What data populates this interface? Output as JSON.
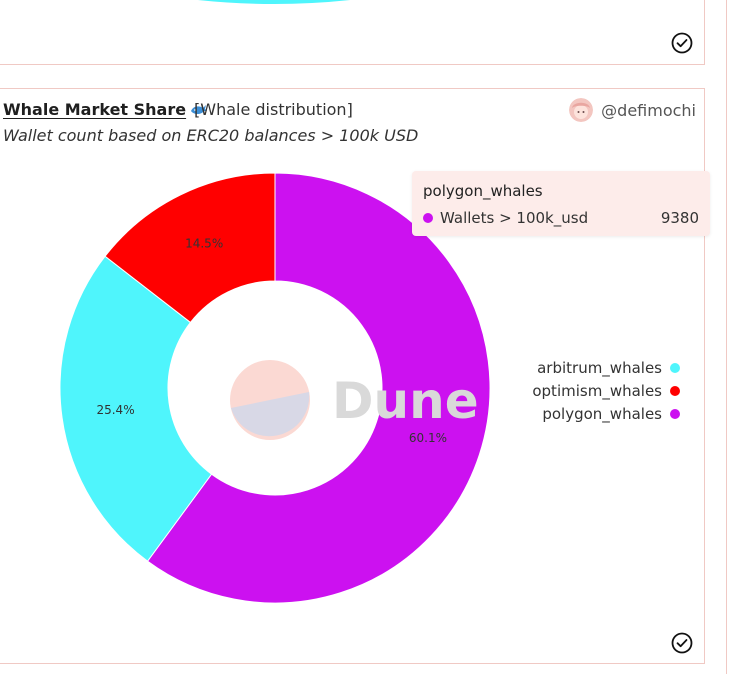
{
  "card": {
    "title": "Whale Market Share",
    "subtitle": "[Whale distribution]",
    "description": "Wallet count based on ERC20 balances > 100k USD",
    "author": "@defimochi"
  },
  "watermark": "Dune",
  "tooltip": {
    "series_name": "polygon_whales",
    "metric_label": "Wallets > 100k_usd",
    "value": "9380",
    "color": "#cc11f0"
  },
  "colors": {
    "arbitrum_whales": "#4ff5fc",
    "optimism_whales": "#ff0000",
    "polygon_whales": "#cc11f0",
    "border": "#f0c9c4"
  },
  "chart_data": {
    "type": "pie",
    "donut": true,
    "title": "Whale Market Share",
    "legend_position": "right",
    "slices": [
      {
        "name": "polygon_whales",
        "percent": 60.1,
        "label": "60.1%",
        "value": 9380
      },
      {
        "name": "arbitrum_whales",
        "percent": 25.4,
        "label": "25.4%"
      },
      {
        "name": "optimism_whales",
        "percent": 14.5,
        "label": "14.5%"
      }
    ],
    "legend": [
      "arbitrum_whales",
      "optimism_whales",
      "polygon_whales"
    ]
  }
}
